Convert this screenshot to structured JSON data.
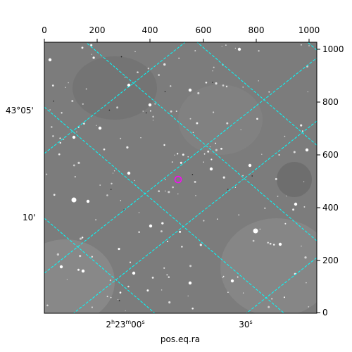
{
  "axes": {
    "bottom_title": "pos.eq.ra",
    "x_ticks_top": [
      "0",
      "200",
      "400",
      "600",
      "800",
      "1000"
    ],
    "y_ticks_right": [
      "1000",
      "800",
      "600",
      "400",
      "200",
      "0"
    ],
    "dec_labels": [
      "43°05'",
      "10'"
    ],
    "ra_labels": [
      "2h23m00s",
      "30s"
    ],
    "ra_label_parts": {
      "first": {
        "h": "2",
        "h_unit": "h",
        "m": "23",
        "m_unit": "m",
        "s": "00",
        "s_unit": "s"
      },
      "second": {
        "s": "30",
        "s_unit": "s"
      }
    }
  },
  "colors": {
    "grid": "#00ffff",
    "marker": "#ff00ff",
    "sky": "#7c7c7c"
  },
  "marker": {
    "shape": "circle",
    "icon": "target-circle-icon"
  }
}
